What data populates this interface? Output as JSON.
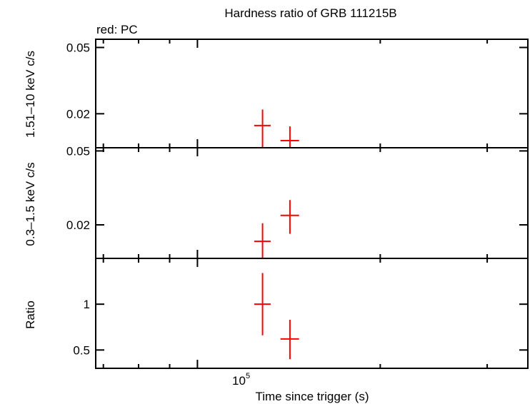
{
  "title": "Hardness ratio of GRB 111215B",
  "subtitle": "red: PC",
  "colors": {
    "data": "#ff0000",
    "axes": "#000000"
  },
  "chart_data": [
    {
      "type": "scatter",
      "panel": "hard",
      "ylabel": "1.51–10 keV c/s",
      "yscale": "log",
      "ylim": [
        0.0125,
        0.056
      ],
      "yticks": [
        {
          "value": 0.05,
          "label": "0.05"
        },
        {
          "value": 0.02,
          "label": "0.02"
        }
      ],
      "points": [
        {
          "x": 128000,
          "xerr": [
            124000,
            132000
          ],
          "y": 0.017,
          "yerr": [
            0.0122,
            0.0212
          ]
        },
        {
          "x": 142000,
          "xerr": [
            137000,
            147000
          ],
          "y": 0.0138,
          "yerr": [
            0.0108,
            0.0168
          ]
        }
      ]
    },
    {
      "type": "scatter",
      "panel": "soft",
      "ylabel": "0.3–1.5 keV c/s",
      "yscale": "log",
      "ylim": [
        0.0132,
        0.052
      ],
      "yticks": [
        {
          "value": 0.05,
          "label": "0.05"
        },
        {
          "value": 0.02,
          "label": "0.02"
        }
      ],
      "points": [
        {
          "x": 128000,
          "xerr": [
            124000,
            132000
          ],
          "y": 0.0163,
          "yerr": [
            0.0132,
            0.0204
          ]
        },
        {
          "x": 142000,
          "xerr": [
            137000,
            147000
          ],
          "y": 0.0225,
          "yerr": [
            0.0179,
            0.0272
          ]
        }
      ]
    },
    {
      "type": "scatter",
      "panel": "ratio",
      "ylabel": "Ratio",
      "yscale": "linear",
      "ylim": [
        0.3,
        1.5
      ],
      "yticks": [
        {
          "value": 1,
          "label": "1"
        },
        {
          "value": 0.5,
          "label": "0.5"
        }
      ],
      "points": [
        {
          "x": 128000,
          "xerr": [
            124000,
            132000
          ],
          "y": 1.0,
          "yerr": [
            0.66,
            1.34
          ]
        },
        {
          "x": 142000,
          "xerr": [
            137000,
            147000
          ],
          "y": 0.62,
          "yerr": [
            0.4,
            0.83
          ]
        }
      ]
    }
  ],
  "xaxis": {
    "label": "Time since trigger (s)",
    "scale": "log",
    "xlim": [
      68000,
      350000
    ],
    "labeled_tick": {
      "value": 100000,
      "base": "10",
      "exponent": "5"
    },
    "major_ticks": [
      100000
    ],
    "minor_ticks": [
      70000,
      80000,
      90000,
      200000,
      300000
    ]
  }
}
